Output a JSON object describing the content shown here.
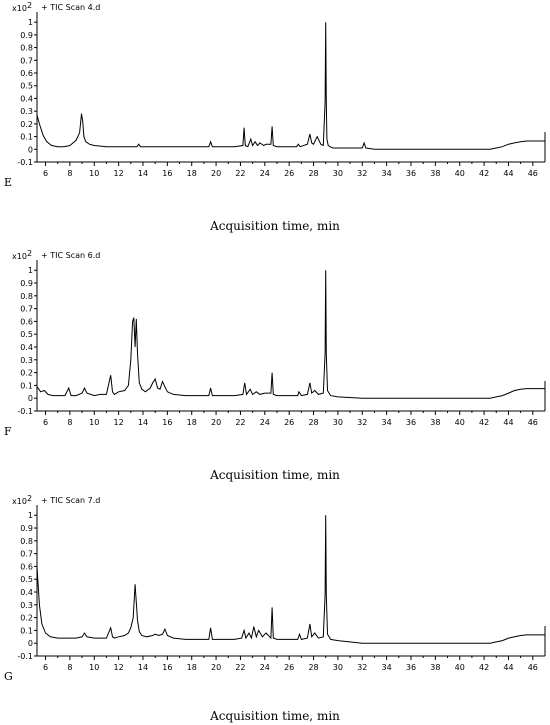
{
  "chart_data": [
    {
      "type": "line",
      "panel_label": "",
      "title": "+ TIC Scan 4.d",
      "y_scale": "x10",
      "y_exponent": "2",
      "xlabel": "",
      "ylabel": "",
      "xlim": [
        5.3,
        47
      ],
      "ylim": [
        -0.1,
        1.08
      ],
      "x_ticks": [
        6,
        8,
        10,
        12,
        14,
        16,
        18,
        20,
        22,
        24,
        26,
        28,
        30,
        32,
        34,
        36,
        38,
        40,
        42,
        44,
        46
      ],
      "y_ticks": [
        "-0.1",
        "0",
        "0.1",
        "0.2",
        "0.3",
        "0.4",
        "0.5",
        "0.6",
        "0.7",
        "0.8",
        "0.9",
        "1"
      ],
      "color": "#000000",
      "series": [
        {
          "x": [
            5.3,
            5.5,
            5.8,
            6.1,
            6.5,
            7.0,
            7.5,
            8.0,
            8.5,
            8.8,
            8.95,
            9.05,
            9.15,
            9.3,
            9.6,
            10.0,
            11.0,
            12.0,
            13.5,
            13.65,
            13.8,
            15.0,
            16.5,
            18.0,
            19.4,
            19.55,
            19.7,
            20.5,
            21.5,
            22.2,
            22.3,
            22.4,
            22.6,
            22.85,
            23.0,
            23.2,
            23.4,
            23.6,
            23.9,
            24.1,
            24.5,
            24.6,
            24.7,
            25.0,
            26.0,
            26.6,
            26.75,
            26.9,
            27.5,
            27.7,
            27.85,
            28.0,
            28.3,
            28.6,
            28.8,
            28.95,
            29.0,
            29.05,
            29.1,
            29.2,
            29.35,
            29.6,
            30.5,
            31.5,
            32.0,
            32.15,
            32.3,
            33.0,
            35.0,
            38.0,
            41.0,
            42.5,
            43.0,
            43.5,
            44.0,
            44.5,
            45.0,
            45.5,
            46.0,
            47.0
          ],
          "y": [
            0.27,
            0.2,
            0.11,
            0.06,
            0.03,
            0.02,
            0.02,
            0.03,
            0.07,
            0.13,
            0.28,
            0.22,
            0.1,
            0.06,
            0.04,
            0.03,
            0.02,
            0.02,
            0.02,
            0.04,
            0.02,
            0.02,
            0.02,
            0.02,
            0.02,
            0.06,
            0.02,
            0.02,
            0.02,
            0.03,
            0.17,
            0.03,
            0.02,
            0.08,
            0.03,
            0.06,
            0.03,
            0.05,
            0.03,
            0.04,
            0.04,
            0.18,
            0.03,
            0.02,
            0.02,
            0.02,
            0.04,
            0.02,
            0.04,
            0.12,
            0.05,
            0.04,
            0.1,
            0.04,
            0.03,
            0.37,
            1.0,
            0.37,
            0.08,
            0.03,
            0.02,
            0.01,
            0.01,
            0.01,
            0.01,
            0.05,
            0.01,
            0.0,
            0.0,
            0.0,
            0.0,
            0.0,
            0.01,
            0.02,
            0.04,
            0.05,
            0.06,
            0.065,
            0.065,
            0.065
          ]
        }
      ]
    },
    {
      "type": "line",
      "panel_label": "E",
      "title": "+ TIC Scan 6.d",
      "y_scale": "x10",
      "y_exponent": "2",
      "xlabel": "Acquisition time, min",
      "ylabel": "",
      "xlim": [
        5.3,
        47
      ],
      "ylim": [
        -0.1,
        1.08
      ],
      "x_ticks": [
        6,
        8,
        10,
        12,
        14,
        16,
        18,
        20,
        22,
        24,
        26,
        28,
        30,
        32,
        34,
        36,
        38,
        40,
        42,
        44,
        46
      ],
      "y_ticks": [
        "-0.1",
        "0",
        "0.1",
        "0.2",
        "0.3",
        "0.4",
        "0.5",
        "0.6",
        "0.7",
        "0.8",
        "0.9",
        "1"
      ],
      "color": "#000000",
      "series": [
        {
          "x": [
            5.3,
            5.6,
            5.9,
            6.2,
            6.6,
            7.0,
            7.6,
            7.9,
            8.1,
            8.5,
            9.0,
            9.2,
            9.4,
            10.0,
            10.5,
            11.0,
            11.35,
            11.5,
            11.65,
            12.0,
            12.5,
            12.8,
            13.0,
            13.15,
            13.25,
            13.35,
            13.45,
            13.55,
            13.7,
            13.9,
            14.2,
            14.6,
            14.8,
            15.0,
            15.2,
            15.4,
            15.6,
            15.8,
            16.0,
            16.5,
            17.5,
            18.5,
            19.4,
            19.55,
            19.7,
            20.5,
            21.5,
            22.2,
            22.35,
            22.5,
            22.8,
            23.0,
            23.3,
            23.6,
            24.0,
            24.5,
            24.6,
            24.7,
            25.0,
            26.0,
            26.7,
            26.8,
            27.0,
            27.5,
            27.7,
            27.85,
            28.1,
            28.4,
            28.8,
            28.95,
            29.0,
            29.05,
            29.15,
            29.4,
            30.0,
            32.0,
            35.0,
            38.0,
            41.0,
            42.5,
            43.0,
            43.5,
            44.0,
            44.5,
            45.0,
            45.5,
            46.0,
            47.0
          ],
          "y": [
            0.09,
            0.05,
            0.06,
            0.03,
            0.02,
            0.02,
            0.02,
            0.08,
            0.02,
            0.02,
            0.04,
            0.08,
            0.04,
            0.02,
            0.03,
            0.03,
            0.18,
            0.05,
            0.03,
            0.05,
            0.06,
            0.1,
            0.3,
            0.6,
            0.63,
            0.4,
            0.62,
            0.35,
            0.12,
            0.07,
            0.05,
            0.08,
            0.12,
            0.15,
            0.08,
            0.07,
            0.13,
            0.09,
            0.05,
            0.03,
            0.02,
            0.02,
            0.02,
            0.08,
            0.02,
            0.02,
            0.02,
            0.03,
            0.12,
            0.03,
            0.07,
            0.03,
            0.05,
            0.03,
            0.04,
            0.04,
            0.2,
            0.03,
            0.02,
            0.02,
            0.02,
            0.05,
            0.02,
            0.03,
            0.12,
            0.04,
            0.06,
            0.03,
            0.04,
            0.35,
            1.0,
            0.35,
            0.06,
            0.02,
            0.01,
            0.0,
            0.0,
            0.0,
            0.0,
            0.0,
            0.01,
            0.02,
            0.04,
            0.06,
            0.07,
            0.075,
            0.075,
            0.075
          ]
        }
      ]
    },
    {
      "type": "line",
      "panel_label": "F",
      "title": "+ TIC Scan 7.d",
      "y_scale": "x10",
      "y_exponent": "2",
      "xlabel": "Acquisition time, min",
      "ylabel": "",
      "xlim": [
        5.3,
        47
      ],
      "ylim": [
        -0.1,
        1.08
      ],
      "x_ticks": [
        6,
        8,
        10,
        12,
        14,
        16,
        18,
        20,
        22,
        24,
        26,
        28,
        30,
        32,
        34,
        36,
        38,
        40,
        42,
        44,
        46
      ],
      "y_ticks": [
        "-0.1",
        "0",
        "0.1",
        "0.2",
        "0.3",
        "0.4",
        "0.5",
        "0.6",
        "0.7",
        "0.8",
        "0.9",
        "1"
      ],
      "color": "#000000",
      "series": [
        {
          "x": [
            5.3,
            5.4,
            5.5,
            5.7,
            6.0,
            6.4,
            7.0,
            7.5,
            8.0,
            8.5,
            9.0,
            9.2,
            9.4,
            10.0,
            10.5,
            11.0,
            11.35,
            11.5,
            11.65,
            12.0,
            12.5,
            12.8,
            13.0,
            13.2,
            13.35,
            13.45,
            13.55,
            13.7,
            13.9,
            14.3,
            14.8,
            15.0,
            15.3,
            15.6,
            15.8,
            16.0,
            16.5,
            17.5,
            18.5,
            19.4,
            19.55,
            19.7,
            20.5,
            21.5,
            22.1,
            22.3,
            22.45,
            22.7,
            22.9,
            23.1,
            23.3,
            23.5,
            23.8,
            24.1,
            24.5,
            24.6,
            24.7,
            25.0,
            26.0,
            26.7,
            26.85,
            27.0,
            27.5,
            27.7,
            27.85,
            28.1,
            28.4,
            28.8,
            28.95,
            29.0,
            29.05,
            29.15,
            29.4,
            30.0,
            32.0,
            35.0,
            38.0,
            41.0,
            42.5,
            43.0,
            43.5,
            44.0,
            44.5,
            45.0,
            45.5,
            46.0,
            47.0
          ],
          "y": [
            0.6,
            0.45,
            0.3,
            0.15,
            0.08,
            0.05,
            0.04,
            0.04,
            0.04,
            0.04,
            0.05,
            0.08,
            0.05,
            0.04,
            0.04,
            0.04,
            0.12,
            0.05,
            0.04,
            0.05,
            0.06,
            0.08,
            0.12,
            0.2,
            0.46,
            0.32,
            0.18,
            0.09,
            0.06,
            0.05,
            0.06,
            0.07,
            0.06,
            0.07,
            0.11,
            0.06,
            0.04,
            0.03,
            0.03,
            0.03,
            0.12,
            0.03,
            0.03,
            0.03,
            0.04,
            0.1,
            0.04,
            0.08,
            0.04,
            0.13,
            0.05,
            0.1,
            0.05,
            0.08,
            0.04,
            0.28,
            0.04,
            0.03,
            0.03,
            0.03,
            0.07,
            0.03,
            0.04,
            0.15,
            0.05,
            0.08,
            0.04,
            0.05,
            0.38,
            1.0,
            0.38,
            0.07,
            0.03,
            0.02,
            0.0,
            0.0,
            0.0,
            0.0,
            0.0,
            0.01,
            0.02,
            0.04,
            0.05,
            0.06,
            0.065,
            0.065,
            0.065
          ]
        }
      ]
    }
  ],
  "bottom_panel_label": "G",
  "bottom_xlabel": "Acquisition time, min"
}
